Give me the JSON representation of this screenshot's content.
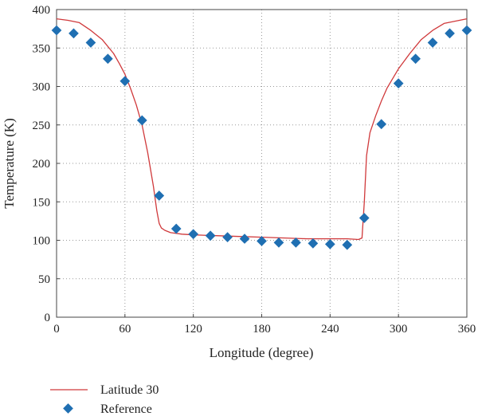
{
  "chart_data": {
    "type": "line",
    "xlabel": "Longitude (degree)",
    "ylabel": "Temperature (K)",
    "xlim": [
      0,
      360
    ],
    "ylim": [
      0,
      400
    ],
    "xticks": [
      0,
      60,
      120,
      180,
      240,
      300,
      360
    ],
    "yticks": [
      0,
      50,
      100,
      150,
      200,
      250,
      300,
      350,
      400
    ],
    "grid": true,
    "legend_position": "bottom-left",
    "series": [
      {
        "name": "Latitude 30",
        "kind": "line",
        "color": "#d0393b",
        "x": [
          0,
          10,
          20,
          30,
          40,
          50,
          55,
          60,
          65,
          70,
          75,
          80,
          85,
          88,
          90,
          92,
          95,
          100,
          110,
          120,
          140,
          160,
          180,
          200,
          220,
          240,
          255,
          265,
          268,
          270,
          272,
          275,
          280,
          285,
          290,
          300,
          310,
          320,
          330,
          340,
          350,
          360
        ],
        "y": [
          388,
          386,
          383,
          373,
          361,
          343,
          330,
          316,
          297,
          276,
          250,
          214,
          170,
          138,
          122,
          116,
          113,
          110,
          108,
          107,
          106,
          105,
          104,
          103,
          102,
          102,
          102,
          101,
          103,
          150,
          210,
          240,
          262,
          281,
          298,
          323,
          343,
          361,
          373,
          382,
          385,
          388
        ]
      },
      {
        "name": "Reference",
        "kind": "scatter",
        "color": "#1f6fb2",
        "x": [
          0,
          15,
          30,
          45,
          60,
          75,
          90,
          105,
          120,
          135,
          150,
          165,
          180,
          195,
          210,
          225,
          240,
          255,
          270,
          285,
          300,
          315,
          330,
          345,
          360
        ],
        "y": [
          373,
          369,
          357,
          336,
          307,
          256,
          158,
          115,
          108,
          106,
          104,
          102,
          99,
          97,
          97,
          96,
          95,
          94,
          129,
          251,
          304,
          336,
          357,
          369,
          373
        ]
      }
    ]
  }
}
